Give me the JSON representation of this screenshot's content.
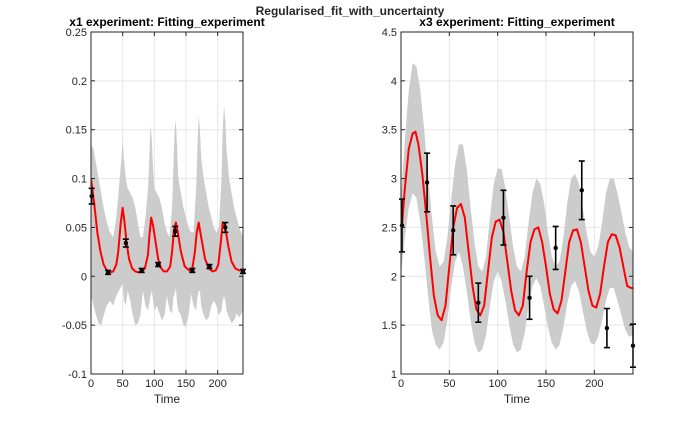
{
  "figure": {
    "suptitle": "Regularised_fit_with_uncertainty"
  },
  "colors": {
    "band": "#cccccc",
    "fit": "#ff0000",
    "data": "#000000",
    "axes": "#262626",
    "grid": "#e6e6e6"
  },
  "chart_data": [
    {
      "type": "line",
      "title": "x1 experiment: Fitting_experiment",
      "xlabel": "Time",
      "ylabel": "",
      "xlim": [
        0,
        240
      ],
      "ylim": [
        -0.1,
        0.25
      ],
      "xticks": [
        0,
        50,
        100,
        150,
        200
      ],
      "yticks": [
        -0.1,
        -0.05,
        0,
        0.05,
        0.1,
        0.15,
        0.2,
        0.25
      ],
      "ytick_labels": [
        "-0.1",
        "-0.05",
        "0",
        "0.05",
        "0.1",
        "0.15",
        "0.2",
        "0.25"
      ],
      "grid": true,
      "fit_curve": {
        "x": [
          0,
          5,
          10,
          15,
          20,
          25,
          30,
          35,
          40,
          43,
          47,
          50,
          53,
          56,
          60,
          65,
          70,
          75,
          80,
          85,
          90,
          92,
          95,
          98,
          102,
          106,
          110,
          115,
          120,
          125,
          128,
          131,
          134,
          137,
          142,
          148,
          155,
          160,
          164,
          167,
          170,
          174,
          180,
          186,
          192,
          197,
          201,
          205,
          208,
          212,
          217,
          222,
          228,
          234,
          240
        ],
        "y": [
          0.1,
          0.075,
          0.045,
          0.025,
          0.012,
          0.006,
          0.004,
          0.005,
          0.012,
          0.025,
          0.055,
          0.07,
          0.055,
          0.035,
          0.018,
          0.008,
          0.005,
          0.004,
          0.005,
          0.008,
          0.022,
          0.04,
          0.06,
          0.052,
          0.035,
          0.018,
          0.009,
          0.005,
          0.005,
          0.01,
          0.025,
          0.048,
          0.055,
          0.045,
          0.025,
          0.01,
          0.006,
          0.008,
          0.025,
          0.045,
          0.055,
          0.04,
          0.018,
          0.008,
          0.005,
          0.006,
          0.012,
          0.035,
          0.055,
          0.05,
          0.03,
          0.015,
          0.008,
          0.006,
          0.006
        ]
      },
      "band": {
        "x": [
          0,
          4,
          8,
          12,
          16,
          20,
          25,
          30,
          35,
          40,
          44,
          48,
          50,
          52,
          55,
          58,
          62,
          66,
          70,
          74,
          78,
          82,
          86,
          90,
          92,
          94,
          96,
          98,
          100,
          104,
          108,
          112,
          116,
          120,
          124,
          128,
          130,
          132,
          134,
          136,
          138,
          142,
          146,
          150,
          154,
          158,
          162,
          166,
          168,
          170,
          172,
          174,
          178,
          182,
          186,
          190,
          194,
          198,
          202,
          206,
          208,
          210,
          212,
          214,
          218,
          222,
          226,
          230,
          234,
          240
        ],
        "upper": [
          0.135,
          0.13,
          0.115,
          0.1,
          0.085,
          0.07,
          0.055,
          0.045,
          0.04,
          0.06,
          0.09,
          0.12,
          0.14,
          0.12,
          0.1,
          0.09,
          0.085,
          0.08,
          0.07,
          0.055,
          0.04,
          0.04,
          0.06,
          0.09,
          0.12,
          0.155,
          0.14,
          0.11,
          0.09,
          0.085,
          0.08,
          0.07,
          0.055,
          0.045,
          0.04,
          0.07,
          0.11,
          0.15,
          0.16,
          0.13,
          0.1,
          0.085,
          0.07,
          0.06,
          0.05,
          0.045,
          0.045,
          0.09,
          0.13,
          0.165,
          0.15,
          0.12,
          0.1,
          0.085,
          0.07,
          0.06,
          0.05,
          0.045,
          0.05,
          0.1,
          0.15,
          0.175,
          0.16,
          0.13,
          0.1,
          0.085,
          0.07,
          0.06,
          0.05,
          0.04
        ],
        "lower": [
          -0.02,
          -0.03,
          -0.04,
          -0.048,
          -0.05,
          -0.04,
          -0.03,
          -0.025,
          -0.03,
          -0.02,
          -0.015,
          -0.01,
          -0.008,
          -0.025,
          -0.03,
          -0.015,
          -0.025,
          -0.04,
          -0.05,
          -0.048,
          -0.04,
          -0.015,
          -0.03,
          -0.035,
          -0.028,
          -0.02,
          -0.015,
          -0.025,
          -0.035,
          -0.03,
          -0.038,
          -0.045,
          -0.04,
          -0.02,
          -0.035,
          -0.038,
          -0.022,
          -0.018,
          -0.012,
          -0.028,
          -0.035,
          -0.04,
          -0.05,
          -0.052,
          -0.04,
          -0.018,
          -0.03,
          -0.035,
          -0.022,
          -0.015,
          -0.015,
          -0.03,
          -0.04,
          -0.045,
          -0.042,
          -0.03,
          -0.025,
          -0.03,
          -0.04,
          -0.035,
          -0.025,
          -0.02,
          -0.025,
          -0.035,
          -0.042,
          -0.048,
          -0.045,
          -0.038,
          -0.042,
          -0.035
        ]
      },
      "data_points": {
        "x": [
          1,
          27,
          55,
          80,
          106,
          133,
          160,
          187,
          212,
          240
        ],
        "y": [
          0.082,
          0.004,
          0.034,
          0.006,
          0.012,
          0.046,
          0.006,
          0.01,
          0.05,
          0.005
        ],
        "err": [
          0.008,
          0.002,
          0.004,
          0.002,
          0.002,
          0.005,
          0.002,
          0.002,
          0.005,
          0.002
        ]
      }
    },
    {
      "type": "line",
      "title": "x3 experiment: Fitting_experiment",
      "xlabel": "Time",
      "ylabel": "",
      "xlim": [
        0,
        240
      ],
      "ylim": [
        1,
        4.5
      ],
      "xticks": [
        0,
        50,
        100,
        150,
        200
      ],
      "yticks": [
        1,
        1.5,
        2,
        2.5,
        3,
        3.5,
        4,
        4.5
      ],
      "ytick_labels": [
        "1",
        "1.5",
        "2",
        "2.5",
        "3",
        "3.5",
        "4",
        "4.5"
      ],
      "grid": true,
      "fit_curve": {
        "x": [
          0,
          4,
          8,
          12,
          15,
          18,
          22,
          26,
          30,
          34,
          38,
          42,
          46,
          50,
          54,
          58,
          62,
          66,
          70,
          74,
          78,
          82,
          86,
          90,
          94,
          98,
          102,
          106,
          110,
          114,
          118,
          122,
          126,
          130,
          134,
          138,
          142,
          146,
          150,
          154,
          158,
          162,
          166,
          170,
          174,
          178,
          182,
          186,
          190,
          194,
          198,
          202,
          206,
          210,
          214,
          218,
          222,
          226,
          230,
          234,
          238,
          240
        ],
        "y": [
          2.4,
          2.9,
          3.3,
          3.46,
          3.48,
          3.35,
          3.05,
          2.65,
          2.2,
          1.8,
          1.6,
          1.55,
          1.7,
          2.1,
          2.5,
          2.7,
          2.74,
          2.6,
          2.25,
          1.9,
          1.66,
          1.6,
          1.7,
          2.05,
          2.4,
          2.56,
          2.58,
          2.45,
          2.15,
          1.85,
          1.65,
          1.6,
          1.7,
          2.05,
          2.35,
          2.48,
          2.5,
          2.35,
          2.1,
          1.82,
          1.66,
          1.62,
          1.75,
          2.05,
          2.35,
          2.47,
          2.48,
          2.35,
          2.1,
          1.85,
          1.7,
          1.68,
          1.82,
          2.1,
          2.35,
          2.43,
          2.42,
          2.3,
          2.1,
          1.9,
          1.88,
          1.88
        ]
      },
      "band": {
        "x": [
          0,
          4,
          8,
          12,
          16,
          20,
          24,
          28,
          32,
          36,
          40,
          44,
          48,
          52,
          56,
          60,
          64,
          68,
          72,
          76,
          80,
          84,
          88,
          92,
          96,
          100,
          104,
          108,
          112,
          116,
          120,
          124,
          128,
          132,
          136,
          140,
          144,
          148,
          152,
          156,
          160,
          164,
          168,
          172,
          176,
          180,
          184,
          188,
          192,
          196,
          200,
          204,
          208,
          212,
          216,
          220,
          224,
          228,
          232,
          236,
          240
        ],
        "upper": [
          2.8,
          3.4,
          3.9,
          4.18,
          4.15,
          3.9,
          3.5,
          3.05,
          2.6,
          2.25,
          2.1,
          2.15,
          2.4,
          2.8,
          3.15,
          3.35,
          3.35,
          3.1,
          2.7,
          2.35,
          2.1,
          2.05,
          2.2,
          2.6,
          2.95,
          3.1,
          3.1,
          2.9,
          2.6,
          2.3,
          2.1,
          2.05,
          2.2,
          2.55,
          2.85,
          3.0,
          2.95,
          2.75,
          2.45,
          2.2,
          2.1,
          2.15,
          2.4,
          2.75,
          3.0,
          3.05,
          2.95,
          2.7,
          2.45,
          2.25,
          2.2,
          2.3,
          2.55,
          2.85,
          3.0,
          3.0,
          2.85,
          2.65,
          2.45,
          2.3,
          2.25
        ],
        "lower": [
          2.0,
          2.4,
          2.7,
          2.85,
          2.8,
          2.55,
          2.2,
          1.8,
          1.45,
          1.3,
          1.25,
          1.32,
          1.55,
          1.9,
          2.15,
          2.25,
          2.1,
          1.85,
          1.55,
          1.32,
          1.22,
          1.25,
          1.4,
          1.7,
          1.95,
          2.05,
          1.95,
          1.75,
          1.5,
          1.3,
          1.22,
          1.25,
          1.42,
          1.7,
          1.9,
          1.98,
          1.9,
          1.7,
          1.48,
          1.32,
          1.25,
          1.3,
          1.48,
          1.72,
          1.9,
          1.95,
          1.85,
          1.65,
          1.45,
          1.32,
          1.3,
          1.38,
          1.55,
          1.75,
          1.88,
          1.88,
          1.75,
          1.6,
          1.45,
          1.38,
          1.4
        ]
      },
      "data_points": {
        "x": [
          1,
          27,
          54,
          80,
          106,
          133,
          160,
          187,
          213,
          240
        ],
        "y": [
          2.52,
          2.96,
          2.47,
          1.73,
          2.6,
          1.78,
          2.29,
          2.88,
          1.47,
          1.29
        ],
        "err": [
          0.27,
          0.3,
          0.25,
          0.2,
          0.28,
          0.22,
          0.22,
          0.3,
          0.2,
          0.22
        ]
      }
    }
  ]
}
